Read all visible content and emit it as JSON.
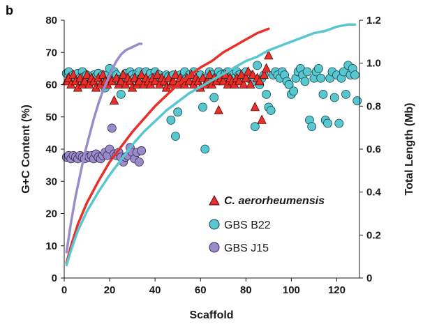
{
  "panel_label": "b",
  "chart_data": {
    "type": "scatter",
    "xlabel": "Scaffold",
    "ylabel": "G+C Content (%)",
    "y2label": "Total Length (Mb)",
    "xlim": [
      0,
      130
    ],
    "ylim": [
      0,
      80
    ],
    "y2lim": [
      0,
      1.2
    ],
    "xticks": [
      "0",
      "20",
      "40",
      "60",
      "80",
      "100",
      "120"
    ],
    "yticks": [
      "0",
      "10",
      "20",
      "30",
      "40",
      "50",
      "60",
      "70",
      "80"
    ],
    "y2ticks": [
      "0",
      "0.2",
      "0.4",
      "0.6",
      "0.8",
      "1.0",
      "1.2"
    ],
    "legend_position": "bottom-right",
    "series": [
      {
        "name": "C. aerorheumensis",
        "marker": "triangle",
        "color": "#e8302a",
        "points": [
          [
            1,
            61
          ],
          [
            2,
            62
          ],
          [
            3,
            60
          ],
          [
            4,
            63
          ],
          [
            5,
            61
          ],
          [
            6,
            59
          ],
          [
            7,
            62
          ],
          [
            8,
            60
          ],
          [
            9,
            61
          ],
          [
            10,
            63
          ],
          [
            11,
            60
          ],
          [
            12,
            62
          ],
          [
            13,
            61
          ],
          [
            14,
            59
          ],
          [
            15,
            62
          ],
          [
            16,
            60
          ],
          [
            17,
            63
          ],
          [
            18,
            61
          ],
          [
            19,
            60
          ],
          [
            20,
            62
          ],
          [
            21,
            61
          ],
          [
            22,
            55
          ],
          [
            23,
            62
          ],
          [
            24,
            60
          ],
          [
            25,
            61
          ],
          [
            26,
            63
          ],
          [
            27,
            60
          ],
          [
            28,
            62
          ],
          [
            29,
            61
          ],
          [
            30,
            59
          ],
          [
            31,
            62
          ],
          [
            32,
            60
          ],
          [
            33,
            61
          ],
          [
            34,
            63
          ],
          [
            35,
            60
          ],
          [
            36,
            62
          ],
          [
            37,
            61
          ],
          [
            38,
            60
          ],
          [
            39,
            62
          ],
          [
            40,
            61
          ],
          [
            41,
            63
          ],
          [
            42,
            60
          ],
          [
            43,
            62
          ],
          [
            44,
            61
          ],
          [
            45,
            59
          ],
          [
            46,
            62
          ],
          [
            47,
            60
          ],
          [
            48,
            61
          ],
          [
            49,
            63
          ],
          [
            50,
            60
          ],
          [
            51,
            62
          ],
          [
            52,
            61
          ],
          [
            53,
            60
          ],
          [
            54,
            62
          ],
          [
            55,
            61
          ],
          [
            56,
            63
          ],
          [
            57,
            60
          ],
          [
            58,
            62
          ],
          [
            59,
            61
          ],
          [
            60,
            59
          ],
          [
            61,
            62
          ],
          [
            62,
            60
          ],
          [
            63,
            61
          ],
          [
            64,
            63
          ],
          [
            65,
            60
          ],
          [
            66,
            62
          ],
          [
            67,
            61
          ],
          [
            68,
            52
          ],
          [
            69,
            62
          ],
          [
            70,
            61
          ],
          [
            71,
            63
          ],
          [
            72,
            60
          ],
          [
            73,
            62
          ],
          [
            74,
            61
          ],
          [
            75,
            60
          ],
          [
            76,
            62
          ],
          [
            77,
            61
          ],
          [
            78,
            63
          ],
          [
            79,
            60
          ],
          [
            80,
            62
          ],
          [
            81,
            64
          ],
          [
            82,
            60
          ],
          [
            83,
            63
          ],
          [
            84,
            53
          ],
          [
            85,
            62
          ],
          [
            86,
            61
          ],
          [
            87,
            49
          ],
          [
            88,
            63
          ],
          [
            89,
            65
          ],
          [
            90,
            69
          ]
        ],
        "cumulative": [
          [
            1,
            0.07
          ],
          [
            3,
            0.15
          ],
          [
            6,
            0.25
          ],
          [
            10,
            0.35
          ],
          [
            15,
            0.45
          ],
          [
            20,
            0.54
          ],
          [
            25,
            0.61
          ],
          [
            30,
            0.68
          ],
          [
            35,
            0.74
          ],
          [
            40,
            0.8
          ],
          [
            45,
            0.85
          ],
          [
            50,
            0.9
          ],
          [
            55,
            0.94
          ],
          [
            60,
            0.98
          ],
          [
            65,
            1.01
          ],
          [
            70,
            1.05
          ],
          [
            75,
            1.08
          ],
          [
            80,
            1.11
          ],
          [
            85,
            1.14
          ],
          [
            90,
            1.16
          ]
        ]
      },
      {
        "name": "GBS B22",
        "marker": "circle",
        "color": "#59c7d0",
        "points": [
          [
            1,
            63.5
          ],
          [
            2,
            64
          ],
          [
            3,
            62.5
          ],
          [
            4,
            63
          ],
          [
            5,
            62
          ],
          [
            6,
            63.5
          ],
          [
            7,
            62
          ],
          [
            8,
            64
          ],
          [
            9,
            62.5
          ],
          [
            10,
            63
          ],
          [
            11,
            62
          ],
          [
            12,
            61
          ],
          [
            13,
            63
          ],
          [
            14,
            62.5
          ],
          [
            15,
            63.5
          ],
          [
            16,
            61
          ],
          [
            17,
            63
          ],
          [
            18,
            59
          ],
          [
            19,
            63
          ],
          [
            20,
            65
          ],
          [
            21,
            62.5
          ],
          [
            22,
            64
          ],
          [
            23,
            63
          ],
          [
            24,
            61.5
          ],
          [
            25,
            57
          ],
          [
            26,
            62
          ],
          [
            27,
            63.5
          ],
          [
            28,
            62
          ],
          [
            29,
            64
          ],
          [
            30,
            63
          ],
          [
            31,
            62
          ],
          [
            32,
            63.5
          ],
          [
            33,
            64
          ],
          [
            34,
            62
          ],
          [
            35,
            63
          ],
          [
            36,
            64
          ],
          [
            37,
            62
          ],
          [
            38,
            63.5
          ],
          [
            39,
            62
          ],
          [
            40,
            64
          ],
          [
            41,
            62.5
          ],
          [
            42,
            63
          ],
          [
            43,
            62
          ],
          [
            44,
            61
          ],
          [
            45,
            63
          ],
          [
            46,
            62.5
          ],
          [
            47,
            49
          ],
          [
            48,
            63
          ],
          [
            49,
            44
          ],
          [
            50,
            51.5
          ],
          [
            51,
            63
          ],
          [
            52,
            62
          ],
          [
            53,
            64
          ],
          [
            54,
            62
          ],
          [
            55,
            63
          ],
          [
            56,
            61
          ],
          [
            57,
            64
          ],
          [
            58,
            63
          ],
          [
            59,
            62
          ],
          [
            60,
            63
          ],
          [
            61,
            53
          ],
          [
            62,
            40
          ],
          [
            63,
            62
          ],
          [
            64,
            64
          ],
          [
            65,
            63
          ],
          [
            66,
            56
          ],
          [
            67,
            62
          ],
          [
            68,
            64
          ],
          [
            69,
            63
          ],
          [
            70,
            62
          ],
          [
            71,
            63.5
          ],
          [
            72,
            64
          ],
          [
            73,
            62
          ],
          [
            74,
            63
          ],
          [
            75,
            62
          ],
          [
            76,
            64
          ],
          [
            77,
            63
          ],
          [
            78,
            62
          ],
          [
            79,
            63
          ],
          [
            80,
            64
          ],
          [
            81,
            62
          ],
          [
            82,
            63
          ],
          [
            83,
            61
          ],
          [
            84,
            47
          ],
          [
            85,
            66
          ],
          [
            86,
            60
          ],
          [
            87,
            62
          ],
          [
            88,
            63
          ],
          [
            89,
            57
          ],
          [
            90,
            53
          ],
          [
            91,
            52
          ],
          [
            92,
            63
          ],
          [
            93,
            64
          ],
          [
            94,
            63
          ],
          [
            95,
            62
          ],
          [
            96,
            64
          ],
          [
            97,
            63
          ],
          [
            98,
            61
          ],
          [
            99,
            60
          ],
          [
            100,
            57
          ],
          [
            101,
            58
          ],
          [
            102,
            62
          ],
          [
            103,
            64
          ],
          [
            104,
            65
          ],
          [
            105,
            63
          ],
          [
            106,
            61
          ],
          [
            107,
            64
          ],
          [
            108,
            49
          ],
          [
            109,
            47
          ],
          [
            110,
            62
          ],
          [
            111,
            64
          ],
          [
            112,
            65
          ],
          [
            113,
            62
          ],
          [
            114,
            57
          ],
          [
            115,
            49
          ],
          [
            116,
            48
          ],
          [
            117,
            62
          ],
          [
            118,
            64
          ],
          [
            119,
            56
          ],
          [
            120,
            63
          ],
          [
            121,
            48
          ],
          [
            122,
            62
          ],
          [
            123,
            64
          ],
          [
            124,
            57
          ],
          [
            125,
            66
          ],
          [
            126,
            63
          ],
          [
            127,
            65
          ],
          [
            128,
            63
          ],
          [
            129,
            55
          ]
        ],
        "cumulative": [
          [
            1,
            0.06
          ],
          [
            3,
            0.13
          ],
          [
            6,
            0.22
          ],
          [
            10,
            0.31
          ],
          [
            15,
            0.4
          ],
          [
            20,
            0.48
          ],
          [
            25,
            0.55
          ],
          [
            30,
            0.62
          ],
          [
            35,
            0.68
          ],
          [
            40,
            0.73
          ],
          [
            45,
            0.78
          ],
          [
            50,
            0.82
          ],
          [
            55,
            0.86
          ],
          [
            60,
            0.89
          ],
          [
            65,
            0.92
          ],
          [
            70,
            0.95
          ],
          [
            75,
            0.98
          ],
          [
            80,
            1.01
          ],
          [
            85,
            1.03
          ],
          [
            90,
            1.06
          ],
          [
            95,
            1.08
          ],
          [
            100,
            1.1
          ],
          [
            105,
            1.12
          ],
          [
            110,
            1.14
          ],
          [
            115,
            1.15
          ],
          [
            120,
            1.17
          ],
          [
            125,
            1.18
          ],
          [
            128,
            1.18
          ]
        ]
      },
      {
        "name": "GBS J15",
        "marker": "circle",
        "color": "#9b8cc9",
        "points": [
          [
            1,
            37.5
          ],
          [
            2,
            38
          ],
          [
            3,
            37
          ],
          [
            4,
            38
          ],
          [
            5,
            37.5
          ],
          [
            6,
            37
          ],
          [
            7,
            38
          ],
          [
            8,
            37.5
          ],
          [
            9,
            37
          ],
          [
            10,
            38
          ],
          [
            11,
            37.5
          ],
          [
            12,
            38
          ],
          [
            13,
            37
          ],
          [
            14,
            38.5
          ],
          [
            15,
            37.5
          ],
          [
            16,
            37
          ],
          [
            17,
            38
          ],
          [
            18,
            39
          ],
          [
            19,
            38
          ],
          [
            20,
            40
          ],
          [
            21,
            46.5
          ],
          [
            22,
            38.5
          ],
          [
            23,
            38
          ],
          [
            24,
            39
          ],
          [
            25,
            37.5
          ],
          [
            26,
            36
          ],
          [
            27,
            37.5
          ],
          [
            28,
            38
          ],
          [
            29,
            40.5
          ],
          [
            30,
            39
          ],
          [
            31,
            37
          ],
          [
            32,
            39
          ],
          [
            33,
            36
          ],
          [
            34,
            39.5
          ]
        ],
        "cumulative": [
          [
            1,
            0.12
          ],
          [
            3,
            0.26
          ],
          [
            5,
            0.38
          ],
          [
            7,
            0.48
          ],
          [
            9,
            0.58
          ],
          [
            11,
            0.66
          ],
          [
            13,
            0.74
          ],
          [
            15,
            0.81
          ],
          [
            17,
            0.87
          ],
          [
            19,
            0.92
          ],
          [
            21,
            0.97
          ],
          [
            23,
            1.01
          ],
          [
            25,
            1.04
          ],
          [
            27,
            1.06
          ],
          [
            29,
            1.07
          ],
          [
            31,
            1.08
          ],
          [
            33,
            1.09
          ],
          [
            34,
            1.09
          ]
        ]
      }
    ]
  }
}
